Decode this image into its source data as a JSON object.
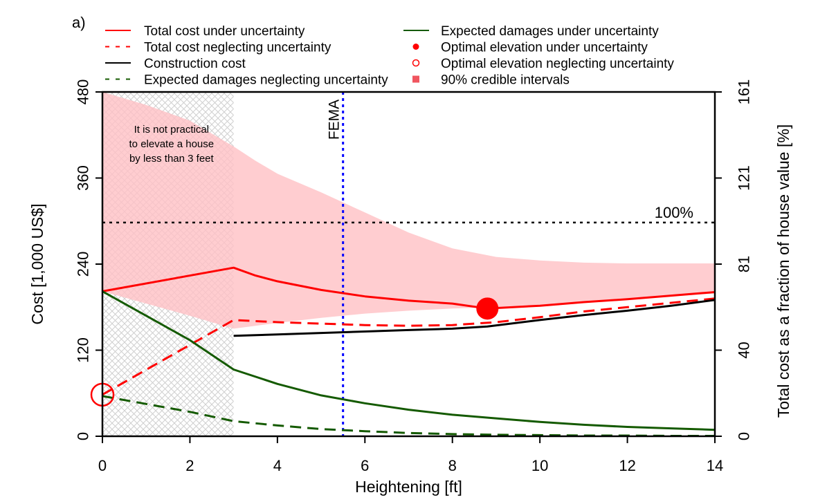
{
  "panel_label": "a)",
  "colors": {
    "red": "#ff0000",
    "band": "#ffc0c4",
    "green": "#145a00",
    "black": "#000000",
    "fema": "#0000ff",
    "hatch": "#cfcfcf"
  },
  "chart_data": {
    "type": "line",
    "xlabel": "Heightening [ft]",
    "ylabel": "Cost [1,000 US$]",
    "ylabel_right": "Total cost as a fraction of house value [%]",
    "xlim": [
      0,
      14
    ],
    "ylim": [
      0,
      480
    ],
    "x_ticks": [
      0,
      2,
      4,
      6,
      8,
      10,
      12,
      14
    ],
    "y_ticks": [
      0,
      120,
      240,
      360,
      480
    ],
    "y_ticks_right": [
      {
        "value": 0,
        "label": "0"
      },
      {
        "value": 120,
        "label": "40"
      },
      {
        "value": 240,
        "label": "81"
      },
      {
        "value": 360,
        "label": "121"
      },
      {
        "value": 480,
        "label": "161"
      }
    ],
    "legend": [
      {
        "label": "Total cost under uncertainty",
        "kind": "line",
        "color": "#ff0000",
        "dash": "solid"
      },
      {
        "label": "Total cost neglecting uncertainty",
        "kind": "line",
        "color": "#ff0000",
        "dash": "dashed"
      },
      {
        "label": "Construction cost",
        "kind": "line",
        "color": "#000000",
        "dash": "solid"
      },
      {
        "label": "Expected damages neglecting uncertainty",
        "kind": "line",
        "color": "#145a00",
        "dash": "dashed"
      },
      {
        "label": "Expected damages under uncertainty",
        "kind": "line",
        "color": "#145a00",
        "dash": "solid"
      },
      {
        "label": "Optimal elevation under uncertainty",
        "kind": "dot",
        "color": "#ff0000"
      },
      {
        "label": "Optimal elevation neglecting uncertainty",
        "kind": "circle",
        "color": "#ff0000"
      },
      {
        "label": "90% credible intervals",
        "kind": "square",
        "color": "#f0555f"
      }
    ],
    "series": [
      {
        "name": "Total cost under uncertainty",
        "color": "#ff0000",
        "dash": "solid",
        "x": [
          0,
          3,
          3.5,
          4,
          5,
          6,
          7,
          8,
          8.8,
          10,
          11,
          12,
          13,
          14
        ],
        "y": [
          202,
          235,
          224,
          216,
          204,
          195,
          189,
          185,
          178,
          182,
          187,
          191,
          196,
          201
        ]
      },
      {
        "name": "Total cost neglecting uncertainty",
        "color": "#ff0000",
        "dash": "dashed",
        "x": [
          0,
          3,
          4,
          5,
          6,
          7,
          8,
          9,
          10,
          11,
          12,
          13,
          14
        ],
        "y": [
          58,
          162,
          159,
          157,
          155,
          154,
          155,
          159,
          166,
          174,
          180,
          186,
          192
        ]
      },
      {
        "name": "Construction cost",
        "color": "#000000",
        "dash": "solid",
        "x": [
          3,
          4,
          5,
          6,
          7,
          8,
          8.8,
          10,
          11,
          12,
          13,
          14
        ],
        "y": [
          140,
          142,
          144,
          146,
          148,
          150,
          153,
          162,
          169,
          175,
          182,
          190
        ]
      },
      {
        "name": "Expected damages under uncertainty",
        "color": "#145a00",
        "dash": "solid",
        "x": [
          0,
          1,
          2,
          3,
          4,
          5,
          6,
          7,
          8,
          9,
          10,
          11,
          12,
          13,
          14
        ],
        "y": [
          202,
          168,
          134,
          93,
          73,
          57,
          46,
          37,
          30,
          25,
          20,
          16,
          13,
          11,
          9
        ]
      },
      {
        "name": "Expected damages neglecting uncertainty",
        "color": "#145a00",
        "dash": "dashed",
        "x": [
          0,
          1,
          2,
          3,
          4,
          5,
          6,
          7,
          8,
          9,
          10,
          11,
          12,
          13,
          14
        ],
        "y": [
          56,
          45,
          34,
          21,
          15,
          10,
          7,
          4.5,
          3,
          2,
          1.5,
          1,
          1,
          0.5,
          0.5
        ]
      }
    ],
    "band": {
      "name": "90% credible intervals",
      "x": [
        0,
        1,
        2,
        3,
        3.5,
        4,
        5,
        6,
        7,
        8,
        9,
        10,
        11,
        12,
        13,
        14
      ],
      "upper": [
        480,
        462,
        440,
        404,
        384,
        366,
        340,
        312,
        284,
        262,
        250,
        245,
        242,
        241,
        241,
        241
      ],
      "lower": [
        202,
        185,
        168,
        150,
        154,
        158,
        165,
        171,
        175,
        178,
        180,
        183,
        187,
        191,
        195,
        199
      ]
    },
    "optimal_under_uncertainty": {
      "x": 8.8,
      "y": 178
    },
    "optimal_neglecting_uncertainty": {
      "x": 0,
      "y": 58
    },
    "hatched_region": {
      "x_from": 0,
      "x_to": 3
    },
    "fema_line": {
      "x": 5.5,
      "label": "FEMA"
    },
    "reference_line": {
      "y": 298,
      "label": "100%"
    },
    "annotation_lines": [
      "It is not practical",
      "to elevate a house",
      "by less than 3 feet"
    ]
  }
}
